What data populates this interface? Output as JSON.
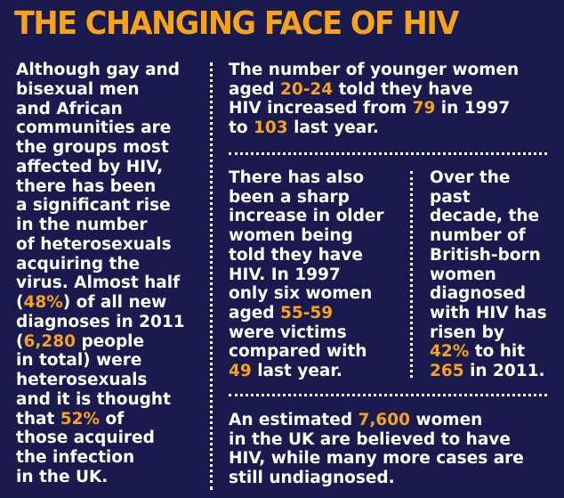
{
  "title": "THE CHANGING FACE OF HIV",
  "colors": {
    "background": "#1b1a4f",
    "highlight": "#f5a31c",
    "text": "#ffffff"
  },
  "left_column": [
    [
      {
        "t": "Although gay and"
      }
    ],
    [
      {
        "t": "bisexual men"
      }
    ],
    [
      {
        "t": "and African"
      }
    ],
    [
      {
        "t": "communities are"
      }
    ],
    [
      {
        "t": "the groups most"
      }
    ],
    [
      {
        "t": "affected by HIV,"
      }
    ],
    [
      {
        "t": "there has been"
      }
    ],
    [
      {
        "t": "a significant rise"
      }
    ],
    [
      {
        "t": "in the number"
      }
    ],
    [
      {
        "t": "of heterosexuals"
      }
    ],
    [
      {
        "t": "acquiring the"
      }
    ],
    [
      {
        "t": "virus. Almost half"
      }
    ],
    [
      {
        "t": "("
      },
      {
        "t": "48%",
        "h": true
      },
      {
        "t": ") of all new"
      }
    ],
    [
      {
        "t": "diagnoses in 2011"
      }
    ],
    [
      {
        "t": "("
      },
      {
        "t": "6,280",
        "h": true
      },
      {
        "t": " people"
      }
    ],
    [
      {
        "t": "in total) were"
      }
    ],
    [
      {
        "t": "heterosexuals"
      }
    ],
    [
      {
        "t": "and it is thought"
      }
    ],
    [
      {
        "t": "that "
      },
      {
        "t": "52%",
        "h": true
      },
      {
        "t": " of"
      }
    ],
    [
      {
        "t": "those acquired"
      }
    ],
    [
      {
        "t": "the infection"
      }
    ],
    [
      {
        "t": "in the UK."
      }
    ]
  ],
  "top_right": [
    [
      {
        "t": "The number of younger women"
      }
    ],
    [
      {
        "t": "aged "
      },
      {
        "t": "20-24",
        "h": true
      },
      {
        "t": " told they have"
      }
    ],
    [
      {
        "t": "HIV increased from "
      },
      {
        "t": "79",
        "h": true
      },
      {
        "t": " in 1997"
      }
    ],
    [
      {
        "t": "to "
      },
      {
        "t": "103",
        "h": true
      },
      {
        "t": " last year."
      }
    ]
  ],
  "middle_left": [
    [
      {
        "t": "There has also"
      }
    ],
    [
      {
        "t": "been a sharp"
      }
    ],
    [
      {
        "t": "increase in older"
      }
    ],
    [
      {
        "t": "women being"
      }
    ],
    [
      {
        "t": "told they have"
      }
    ],
    [
      {
        "t": "HIV. In 1997"
      }
    ],
    [
      {
        "t": "only six women"
      }
    ],
    [
      {
        "t": "aged "
      },
      {
        "t": "55-59",
        "h": true
      }
    ],
    [
      {
        "t": "were victims"
      }
    ],
    [
      {
        "t": "compared with"
      }
    ],
    [
      {
        "t": "49",
        "h": true
      },
      {
        "t": " last year."
      }
    ]
  ],
  "middle_right": [
    [
      {
        "t": "Over the"
      }
    ],
    [
      {
        "t": "past"
      }
    ],
    [
      {
        "t": "decade, the"
      }
    ],
    [
      {
        "t": "number of"
      }
    ],
    [
      {
        "t": "British-born"
      }
    ],
    [
      {
        "t": "women"
      }
    ],
    [
      {
        "t": "diagnosed"
      }
    ],
    [
      {
        "t": "with HIV has"
      }
    ],
    [
      {
        "t": "risen by"
      }
    ],
    [
      {
        "t": "42%",
        "h": true
      },
      {
        "t": " to hit"
      }
    ],
    [
      {
        "t": "265",
        "h": true
      },
      {
        "t": " in 2011."
      }
    ]
  ],
  "bottom_right": [
    [
      {
        "t": "An estimated "
      },
      {
        "t": "7,600",
        "h": true
      },
      {
        "t": " women"
      }
    ],
    [
      {
        "t": "in the UK are believed to have"
      }
    ],
    [
      {
        "t": "HIV, while many more cases are"
      }
    ],
    [
      {
        "t": "still undiagnosed."
      }
    ]
  ]
}
